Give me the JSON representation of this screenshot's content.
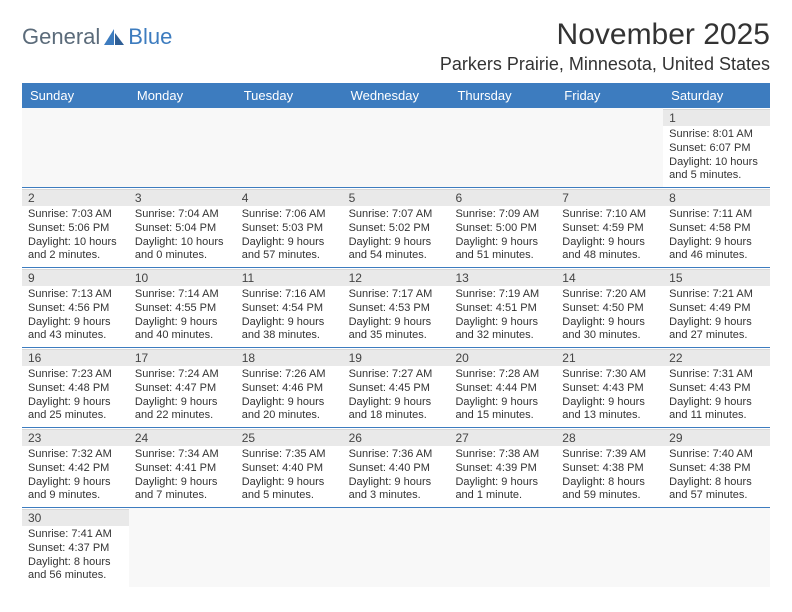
{
  "brand": {
    "part1": "General",
    "part2": "Blue"
  },
  "title": "November 2025",
  "location": "Parkers Prairie, Minnesota, United States",
  "colors": {
    "header_bg": "#3d7cbf",
    "header_text": "#ffffff",
    "daynum_bg": "#e9e9e9",
    "border": "#3d7cbf",
    "text": "#333333"
  },
  "dayNames": [
    "Sunday",
    "Monday",
    "Tuesday",
    "Wednesday",
    "Thursday",
    "Friday",
    "Saturday"
  ],
  "weeks": [
    [
      null,
      null,
      null,
      null,
      null,
      null,
      {
        "n": "1",
        "sr": "Sunrise: 8:01 AM",
        "ss": "Sunset: 6:07 PM",
        "dl": "Daylight: 10 hours and 5 minutes."
      }
    ],
    [
      {
        "n": "2",
        "sr": "Sunrise: 7:03 AM",
        "ss": "Sunset: 5:06 PM",
        "dl": "Daylight: 10 hours and 2 minutes."
      },
      {
        "n": "3",
        "sr": "Sunrise: 7:04 AM",
        "ss": "Sunset: 5:04 PM",
        "dl": "Daylight: 10 hours and 0 minutes."
      },
      {
        "n": "4",
        "sr": "Sunrise: 7:06 AM",
        "ss": "Sunset: 5:03 PM",
        "dl": "Daylight: 9 hours and 57 minutes."
      },
      {
        "n": "5",
        "sr": "Sunrise: 7:07 AM",
        "ss": "Sunset: 5:02 PM",
        "dl": "Daylight: 9 hours and 54 minutes."
      },
      {
        "n": "6",
        "sr": "Sunrise: 7:09 AM",
        "ss": "Sunset: 5:00 PM",
        "dl": "Daylight: 9 hours and 51 minutes."
      },
      {
        "n": "7",
        "sr": "Sunrise: 7:10 AM",
        "ss": "Sunset: 4:59 PM",
        "dl": "Daylight: 9 hours and 48 minutes."
      },
      {
        "n": "8",
        "sr": "Sunrise: 7:11 AM",
        "ss": "Sunset: 4:58 PM",
        "dl": "Daylight: 9 hours and 46 minutes."
      }
    ],
    [
      {
        "n": "9",
        "sr": "Sunrise: 7:13 AM",
        "ss": "Sunset: 4:56 PM",
        "dl": "Daylight: 9 hours and 43 minutes."
      },
      {
        "n": "10",
        "sr": "Sunrise: 7:14 AM",
        "ss": "Sunset: 4:55 PM",
        "dl": "Daylight: 9 hours and 40 minutes."
      },
      {
        "n": "11",
        "sr": "Sunrise: 7:16 AM",
        "ss": "Sunset: 4:54 PM",
        "dl": "Daylight: 9 hours and 38 minutes."
      },
      {
        "n": "12",
        "sr": "Sunrise: 7:17 AM",
        "ss": "Sunset: 4:53 PM",
        "dl": "Daylight: 9 hours and 35 minutes."
      },
      {
        "n": "13",
        "sr": "Sunrise: 7:19 AM",
        "ss": "Sunset: 4:51 PM",
        "dl": "Daylight: 9 hours and 32 minutes."
      },
      {
        "n": "14",
        "sr": "Sunrise: 7:20 AM",
        "ss": "Sunset: 4:50 PM",
        "dl": "Daylight: 9 hours and 30 minutes."
      },
      {
        "n": "15",
        "sr": "Sunrise: 7:21 AM",
        "ss": "Sunset: 4:49 PM",
        "dl": "Daylight: 9 hours and 27 minutes."
      }
    ],
    [
      {
        "n": "16",
        "sr": "Sunrise: 7:23 AM",
        "ss": "Sunset: 4:48 PM",
        "dl": "Daylight: 9 hours and 25 minutes."
      },
      {
        "n": "17",
        "sr": "Sunrise: 7:24 AM",
        "ss": "Sunset: 4:47 PM",
        "dl": "Daylight: 9 hours and 22 minutes."
      },
      {
        "n": "18",
        "sr": "Sunrise: 7:26 AM",
        "ss": "Sunset: 4:46 PM",
        "dl": "Daylight: 9 hours and 20 minutes."
      },
      {
        "n": "19",
        "sr": "Sunrise: 7:27 AM",
        "ss": "Sunset: 4:45 PM",
        "dl": "Daylight: 9 hours and 18 minutes."
      },
      {
        "n": "20",
        "sr": "Sunrise: 7:28 AM",
        "ss": "Sunset: 4:44 PM",
        "dl": "Daylight: 9 hours and 15 minutes."
      },
      {
        "n": "21",
        "sr": "Sunrise: 7:30 AM",
        "ss": "Sunset: 4:43 PM",
        "dl": "Daylight: 9 hours and 13 minutes."
      },
      {
        "n": "22",
        "sr": "Sunrise: 7:31 AM",
        "ss": "Sunset: 4:43 PM",
        "dl": "Daylight: 9 hours and 11 minutes."
      }
    ],
    [
      {
        "n": "23",
        "sr": "Sunrise: 7:32 AM",
        "ss": "Sunset: 4:42 PM",
        "dl": "Daylight: 9 hours and 9 minutes."
      },
      {
        "n": "24",
        "sr": "Sunrise: 7:34 AM",
        "ss": "Sunset: 4:41 PM",
        "dl": "Daylight: 9 hours and 7 minutes."
      },
      {
        "n": "25",
        "sr": "Sunrise: 7:35 AM",
        "ss": "Sunset: 4:40 PM",
        "dl": "Daylight: 9 hours and 5 minutes."
      },
      {
        "n": "26",
        "sr": "Sunrise: 7:36 AM",
        "ss": "Sunset: 4:40 PM",
        "dl": "Daylight: 9 hours and 3 minutes."
      },
      {
        "n": "27",
        "sr": "Sunrise: 7:38 AM",
        "ss": "Sunset: 4:39 PM",
        "dl": "Daylight: 9 hours and 1 minute."
      },
      {
        "n": "28",
        "sr": "Sunrise: 7:39 AM",
        "ss": "Sunset: 4:38 PM",
        "dl": "Daylight: 8 hours and 59 minutes."
      },
      {
        "n": "29",
        "sr": "Sunrise: 7:40 AM",
        "ss": "Sunset: 4:38 PM",
        "dl": "Daylight: 8 hours and 57 minutes."
      }
    ],
    [
      {
        "n": "30",
        "sr": "Sunrise: 7:41 AM",
        "ss": "Sunset: 4:37 PM",
        "dl": "Daylight: 8 hours and 56 minutes."
      },
      null,
      null,
      null,
      null,
      null,
      null
    ]
  ]
}
